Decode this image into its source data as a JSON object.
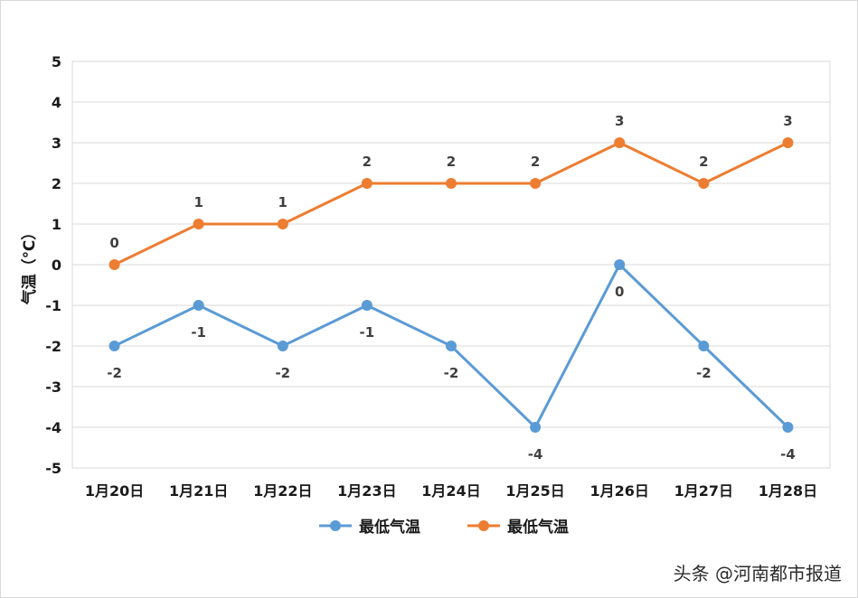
{
  "chart_data": {
    "type": "line",
    "categories": [
      "1月20日",
      "1月21日",
      "1月22日",
      "1月23日",
      "1月24日",
      "1月25日",
      "1月26日",
      "1月27日",
      "1月28日"
    ],
    "series": [
      {
        "name": "最低气温",
        "color": "#5b9bd5",
        "values": [
          -2,
          -1,
          -2,
          -1,
          -2,
          -4,
          0,
          -2,
          -4
        ],
        "label_position": "below"
      },
      {
        "name": "最低气温",
        "color": "#ed7d31",
        "values": [
          0,
          1,
          1,
          2,
          2,
          2,
          3,
          2,
          3
        ],
        "label_position": "above"
      }
    ],
    "ylabel": "气温（℃）",
    "ylim": [
      -5,
      5
    ],
    "yticks": [
      5,
      4,
      3,
      2,
      1,
      0,
      -1,
      -2,
      -3,
      -4,
      -5
    ],
    "grid": true,
    "legend_position": "bottom"
  },
  "watermark": "头条 @河南都市报道"
}
